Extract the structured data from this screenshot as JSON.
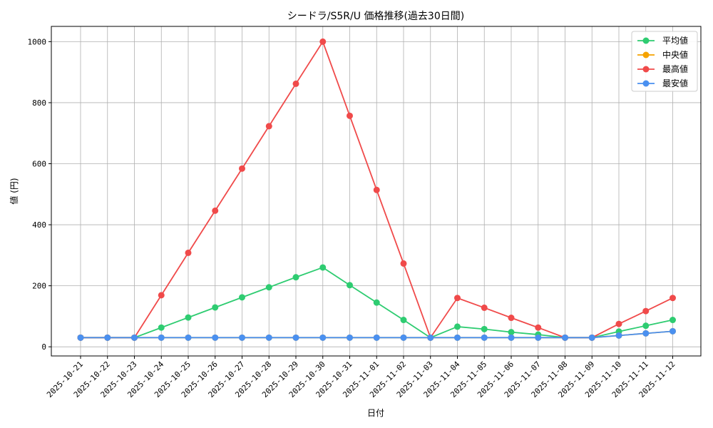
{
  "chart_data": {
    "type": "line",
    "title": "シードラ/S5R/U 価格推移(過去30日間)",
    "xlabel": "日付",
    "ylabel": "値 (円)",
    "ylim": [
      -30,
      1050
    ],
    "yticks": [
      0,
      200,
      400,
      600,
      800,
      1000
    ],
    "grid": true,
    "legend_position": "top-right",
    "categories": [
      "2025-10-21",
      "2025-10-22",
      "2025-10-23",
      "2025-10-24",
      "2025-10-25",
      "2025-10-26",
      "2025-10-27",
      "2025-10-28",
      "2025-10-29",
      "2025-10-30",
      "2025-10-31",
      "2025-11-01",
      "2025-11-02",
      "2025-11-03",
      "2025-11-04",
      "2025-11-05",
      "2025-11-06",
      "2025-11-07",
      "2025-11-08",
      "2025-11-09",
      "2025-11-10",
      "2025-11-11",
      "2025-11-12"
    ],
    "series": [
      {
        "name": "平均値",
        "color": "#2ecc71",
        "values": [
          30,
          30,
          30,
          63,
          96,
          129,
          162,
          195,
          228,
          260,
          202,
          145,
          88,
          30,
          66,
          58,
          48,
          40,
          30,
          30,
          50,
          69,
          88
        ]
      },
      {
        "name": "中央値",
        "color": "#f5a300",
        "values": [
          30,
          30,
          30,
          30,
          30,
          30,
          30,
          30,
          30,
          30,
          30,
          30,
          30,
          30,
          30,
          30,
          30,
          30,
          30,
          30,
          37,
          44,
          51
        ]
      },
      {
        "name": "最高値",
        "color": "#f04a4a",
        "values": [
          30,
          30,
          30,
          169,
          308,
          446,
          584,
          723,
          862,
          1000,
          757,
          514,
          273,
          30,
          160,
          128,
          95,
          63,
          30,
          30,
          75,
          117,
          160
        ]
      },
      {
        "name": "最安値",
        "color": "#4a90f0",
        "values": [
          30,
          30,
          30,
          30,
          30,
          30,
          30,
          30,
          30,
          30,
          30,
          30,
          30,
          30,
          30,
          30,
          30,
          30,
          30,
          30,
          37,
          44,
          51
        ]
      }
    ]
  }
}
